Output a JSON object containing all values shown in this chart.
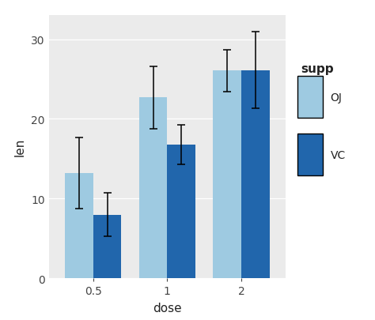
{
  "doses": [
    "0.5",
    "1",
    "2"
  ],
  "oj_means": [
    13.23,
    22.7,
    26.06
  ],
  "vc_means": [
    7.98,
    16.77,
    26.14
  ],
  "oj_errors": [
    4.46,
    3.91,
    2.65
  ],
  "vc_errors": [
    2.75,
    2.52,
    4.78
  ],
  "oj_color": "#9ECAE1",
  "vc_color": "#2166AC",
  "xlabel": "dose",
  "ylabel": "len",
  "ylim": [
    0,
    33
  ],
  "yticks": [
    0,
    10,
    20,
    30
  ],
  "legend_title": "supp",
  "legend_labels": [
    "OJ",
    "VC"
  ],
  "bar_width": 0.38,
  "background_color": "#FFFFFF",
  "panel_bg": "#EBEBEB",
  "grid_color": "#FFFFFF",
  "tick_color": "#444444"
}
